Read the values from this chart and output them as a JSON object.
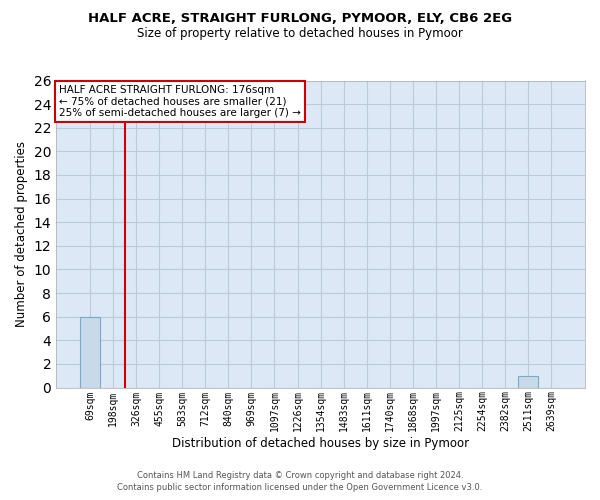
{
  "title": "HALF ACRE, STRAIGHT FURLONG, PYMOOR, ELY, CB6 2EG",
  "subtitle": "Size of property relative to detached houses in Pymoor",
  "xlabel": "Distribution of detached houses by size in Pymoor",
  "ylabel": "Number of detached properties",
  "categories": [
    "69sqm",
    "198sqm",
    "326sqm",
    "455sqm",
    "583sqm",
    "712sqm",
    "840sqm",
    "969sqm",
    "1097sqm",
    "1226sqm",
    "1354sqm",
    "1483sqm",
    "1611sqm",
    "1740sqm",
    "1868sqm",
    "1997sqm",
    "2125sqm",
    "2254sqm",
    "2382sqm",
    "2511sqm",
    "2639sqm"
  ],
  "values": [
    6,
    0,
    0,
    0,
    0,
    0,
    0,
    0,
    0,
    0,
    0,
    0,
    0,
    0,
    0,
    0,
    0,
    0,
    0,
    1,
    0
  ],
  "bar_color": "#c8daea",
  "bar_edge_color": "#7aaac8",
  "ylim": [
    0,
    26
  ],
  "yticks": [
    0,
    2,
    4,
    6,
    8,
    10,
    12,
    14,
    16,
    18,
    20,
    22,
    24,
    26
  ],
  "red_line_x": 1.5,
  "annotation_title": "HALF ACRE STRAIGHT FURLONG: 176sqm",
  "annotation_line1": "← 75% of detached houses are smaller (21)",
  "annotation_line2": "25% of semi-detached houses are larger (7) →",
  "annotation_box_color": "#ffffff",
  "annotation_border_color": "#cc0000",
  "background_color": "#dce8f5",
  "grid_color": "#b8ccd8",
  "footer1": "Contains HM Land Registry data © Crown copyright and database right 2024.",
  "footer2": "Contains public sector information licensed under the Open Government Licence v3.0."
}
